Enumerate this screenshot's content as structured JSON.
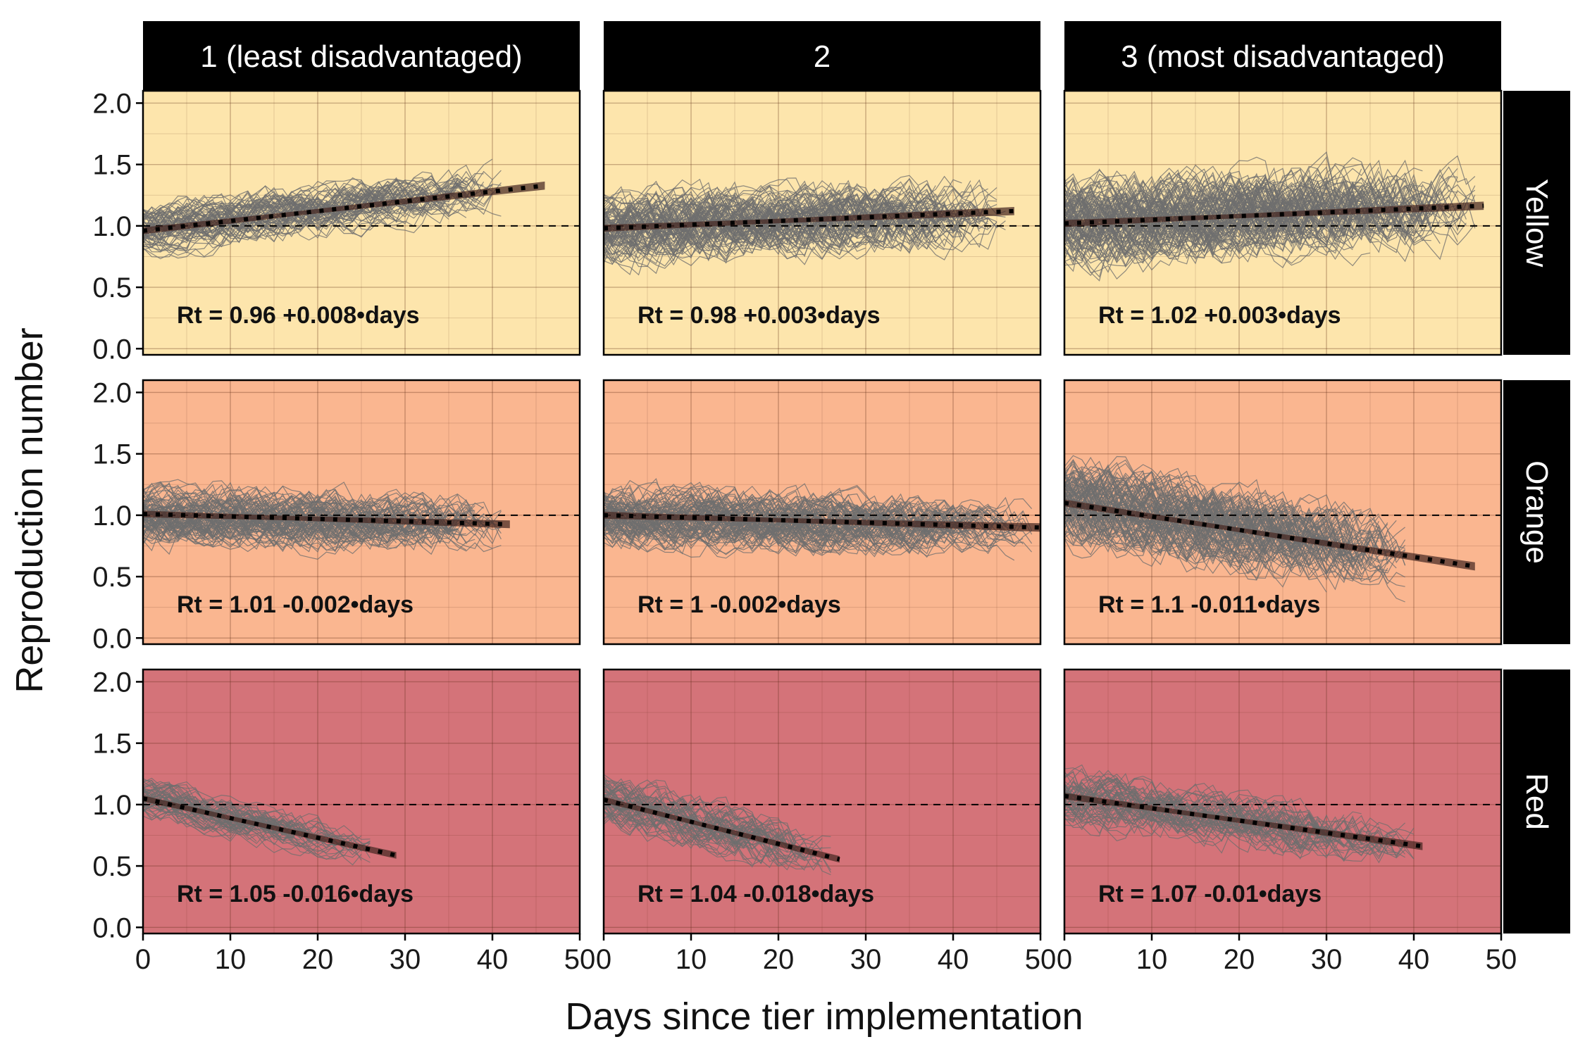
{
  "chart_data": {
    "type": "line",
    "layout": "facet-grid",
    "xlabel": "Days since tier implementation",
    "ylabel": "Reproduction number",
    "xlim": [
      0,
      50
    ],
    "ylim": [
      -0.05,
      2.1
    ],
    "x_ticks": [
      0,
      10,
      20,
      30,
      40,
      50
    ],
    "x_tick_labels": [
      [
        "0",
        "10",
        "20",
        "30",
        "40",
        "50"
      ],
      [
        "0",
        "10",
        "20",
        "30",
        "40",
        "50"
      ],
      [
        "0",
        "10",
        "20",
        "30",
        "40",
        "50"
      ]
    ],
    "y_ticks": [
      0.0,
      0.5,
      1.0,
      1.5,
      2.0
    ],
    "y_tick_labels": [
      "0.0",
      "0.5",
      "1.0",
      "1.5",
      "2.0"
    ],
    "reference_line": 1.0,
    "grid": true,
    "columns": [
      "1 (least disadvantaged)",
      "2",
      "3 (most disadvantaged)"
    ],
    "rows": [
      {
        "label": "Yellow",
        "color": "#fde5ac"
      },
      {
        "label": "Orange",
        "color": "#fab690"
      },
      {
        "label": "Red",
        "color": "#d47379"
      }
    ],
    "panels": [
      {
        "row": 0,
        "col": 0,
        "intercept": 0.96,
        "slope": 0.008,
        "x_max": 46,
        "n_traces": 70,
        "trace_max": 42,
        "noise": 0.17,
        "equation": "Rt = 0.96 +0.008•days"
      },
      {
        "row": 0,
        "col": 1,
        "intercept": 0.98,
        "slope": 0.003,
        "x_max": 47,
        "n_traces": 95,
        "trace_max": 47,
        "noise": 0.24,
        "equation": "Rt = 0.98 +0.003•days"
      },
      {
        "row": 0,
        "col": 2,
        "intercept": 1.02,
        "slope": 0.003,
        "x_max": 48,
        "n_traces": 110,
        "trace_max": 48,
        "noise": 0.3,
        "equation": "Rt = 1.02 +0.003•days"
      },
      {
        "row": 1,
        "col": 0,
        "intercept": 1.01,
        "slope": -0.002,
        "x_max": 42,
        "n_traces": 95,
        "trace_max": 42,
        "noise": 0.2,
        "equation": "Rt = 1.01 -0.002•days"
      },
      {
        "row": 1,
        "col": 1,
        "intercept": 1.0,
        "slope": -0.002,
        "x_max": 50,
        "n_traces": 95,
        "trace_max": 50,
        "noise": 0.2,
        "equation": "Rt = 1 -0.002•days"
      },
      {
        "row": 1,
        "col": 2,
        "intercept": 1.1,
        "slope": -0.011,
        "x_max": 47,
        "n_traces": 110,
        "trace_max": 40,
        "noise": 0.28,
        "equation": "Rt = 1.1 -0.011•days"
      },
      {
        "row": 2,
        "col": 0,
        "intercept": 1.05,
        "slope": -0.016,
        "x_max": 29,
        "n_traces": 60,
        "trace_max": 27,
        "noise": 0.13,
        "equation": "Rt = 1.05 -0.016•days"
      },
      {
        "row": 2,
        "col": 1,
        "intercept": 1.04,
        "slope": -0.018,
        "x_max": 27,
        "n_traces": 60,
        "trace_max": 27,
        "noise": 0.18,
        "equation": "Rt = 1.04 -0.018•days"
      },
      {
        "row": 2,
        "col": 2,
        "intercept": 1.07,
        "slope": -0.01,
        "x_max": 41,
        "n_traces": 60,
        "trace_max": 41,
        "noise": 0.2,
        "equation": "Rt = 1.07 -0.01•days"
      }
    ]
  }
}
